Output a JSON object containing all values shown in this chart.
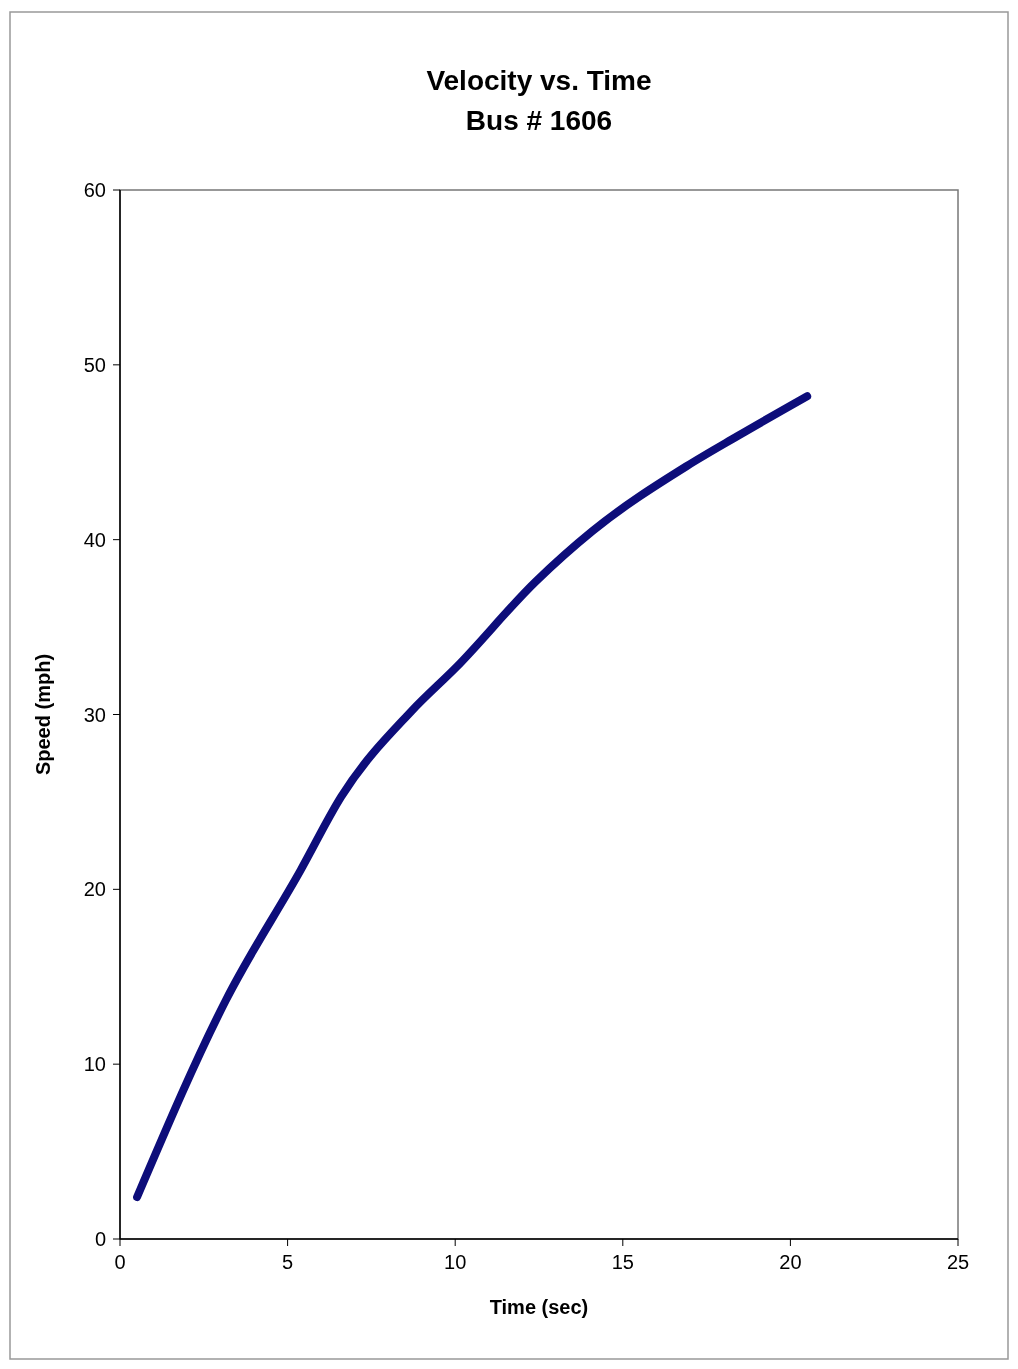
{
  "chart_data": {
    "type": "line",
    "title": "Velocity vs. Time",
    "subtitle": "Bus # 1606",
    "xlabel": "Time (sec)",
    "ylabel": "Speed (mph)",
    "xlim": [
      0,
      25
    ],
    "xticks": [
      0,
      5,
      10,
      15,
      20,
      25
    ],
    "ylim": [
      0,
      60
    ],
    "yticks": [
      0,
      10,
      20,
      30,
      40,
      50,
      60
    ],
    "grid": false,
    "marker": "none",
    "line_style": "solid",
    "series": [
      {
        "color": "#0d0d7a",
        "x": [
          0.51,
          3.17,
          5.39,
          6.6,
          8.7,
          10.03,
          12.4,
          14.1,
          16.9,
          18.4,
          20.5
        ],
        "values": [
          2.4,
          13.7,
          21.1,
          25.3,
          30.2,
          32.7,
          37.6,
          40.5,
          44.2,
          45.9,
          48.2
        ]
      }
    ]
  }
}
